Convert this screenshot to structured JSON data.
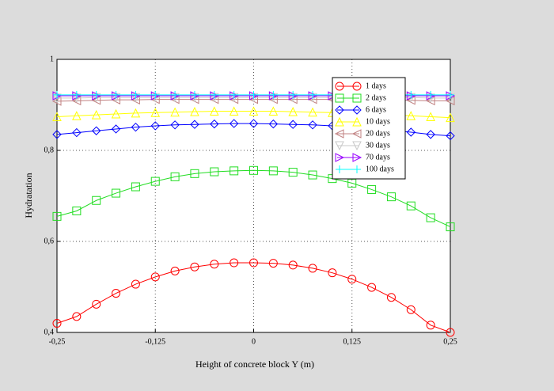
{
  "chart_data": {
    "type": "line",
    "xlabel": "Height of concrete block Y (m)",
    "ylabel": "Hydratation",
    "x": [
      -0.25,
      -0.225,
      -0.2,
      -0.175,
      -0.15,
      -0.125,
      -0.1,
      -0.075,
      -0.05,
      -0.025,
      0,
      0.025,
      0.05,
      0.075,
      0.1,
      0.125,
      0.15,
      0.175,
      0.2,
      0.225,
      0.25
    ],
    "series": [
      {
        "name": "1 days",
        "color": "#ff0000",
        "marker": "circle",
        "values": [
          0.42,
          0.435,
          0.462,
          0.486,
          0.506,
          0.522,
          0.535,
          0.544,
          0.55,
          0.553,
          0.553,
          0.552,
          0.548,
          0.541,
          0.531,
          0.517,
          0.499,
          0.477,
          0.45,
          0.416,
          0.4
        ]
      },
      {
        "name": "2 days",
        "color": "#22dd22",
        "marker": "square",
        "values": [
          0.655,
          0.667,
          0.69,
          0.706,
          0.72,
          0.732,
          0.742,
          0.749,
          0.753,
          0.755,
          0.756,
          0.755,
          0.752,
          0.746,
          0.738,
          0.728,
          0.714,
          0.698,
          0.678,
          0.652,
          0.632
        ]
      },
      {
        "name": "6 days",
        "color": "#0000ff",
        "marker": "diamond",
        "values": [
          0.835,
          0.839,
          0.843,
          0.847,
          0.851,
          0.854,
          0.856,
          0.857,
          0.858,
          0.859,
          0.859,
          0.858,
          0.857,
          0.856,
          0.854,
          0.851,
          0.848,
          0.844,
          0.84,
          0.835,
          0.832
        ]
      },
      {
        "name": "10 days",
        "color": "#ffff00",
        "marker": "triangle-up",
        "values": [
          0.874,
          0.876,
          0.878,
          0.88,
          0.882,
          0.883,
          0.884,
          0.885,
          0.886,
          0.886,
          0.886,
          0.886,
          0.885,
          0.884,
          0.883,
          0.882,
          0.88,
          0.878,
          0.876,
          0.874,
          0.872
        ]
      },
      {
        "name": "20 days",
        "color": "#c08080",
        "marker": "triangle-left",
        "values": [
          0.908,
          0.909,
          0.91,
          0.911,
          0.911,
          0.912,
          0.912,
          0.912,
          0.912,
          0.912,
          0.912,
          0.912,
          0.912,
          0.912,
          0.912,
          0.911,
          0.911,
          0.91,
          0.91,
          0.909,
          0.909
        ]
      },
      {
        "name": "30 days",
        "color": "#c8c8c8",
        "marker": "triangle-down",
        "values": [
          0.915,
          0.915,
          0.916,
          0.916,
          0.916,
          0.916,
          0.916,
          0.916,
          0.916,
          0.916,
          0.916,
          0.916,
          0.916,
          0.916,
          0.916,
          0.916,
          0.916,
          0.916,
          0.916,
          0.915,
          0.915
        ]
      },
      {
        "name": "70 days",
        "color": "#9900ff",
        "marker": "triangle-right",
        "values": [
          0.92,
          0.92,
          0.92,
          0.92,
          0.92,
          0.92,
          0.92,
          0.92,
          0.92,
          0.92,
          0.92,
          0.92,
          0.92,
          0.92,
          0.92,
          0.92,
          0.92,
          0.92,
          0.92,
          0.92,
          0.92
        ]
      },
      {
        "name": "100 days",
        "color": "#00ffff",
        "marker": "plus",
        "values": [
          0.922,
          0.922,
          0.922,
          0.922,
          0.922,
          0.922,
          0.922,
          0.922,
          0.922,
          0.922,
          0.922,
          0.922,
          0.922,
          0.922,
          0.922,
          0.922,
          0.922,
          0.922,
          0.922,
          0.922,
          0.922
        ]
      }
    ],
    "xlim": [
      -0.25,
      0.25
    ],
    "xticks": [
      {
        "value": -0.25,
        "label": "-0,25"
      },
      {
        "value": -0.125,
        "label": "-0,125"
      },
      0,
      {
        "value": 0.125,
        "label": "0,125"
      },
      {
        "value": 0.25,
        "label": "0,25"
      }
    ],
    "ylim": [
      0.4,
      1
    ],
    "yticks": [
      {
        "value": 0.4,
        "label": "0,4"
      },
      {
        "value": 0.6,
        "label": "0,6"
      },
      {
        "value": 0.8,
        "label": "0,8"
      },
      1
    ],
    "grid": true,
    "legend": "upper right"
  }
}
